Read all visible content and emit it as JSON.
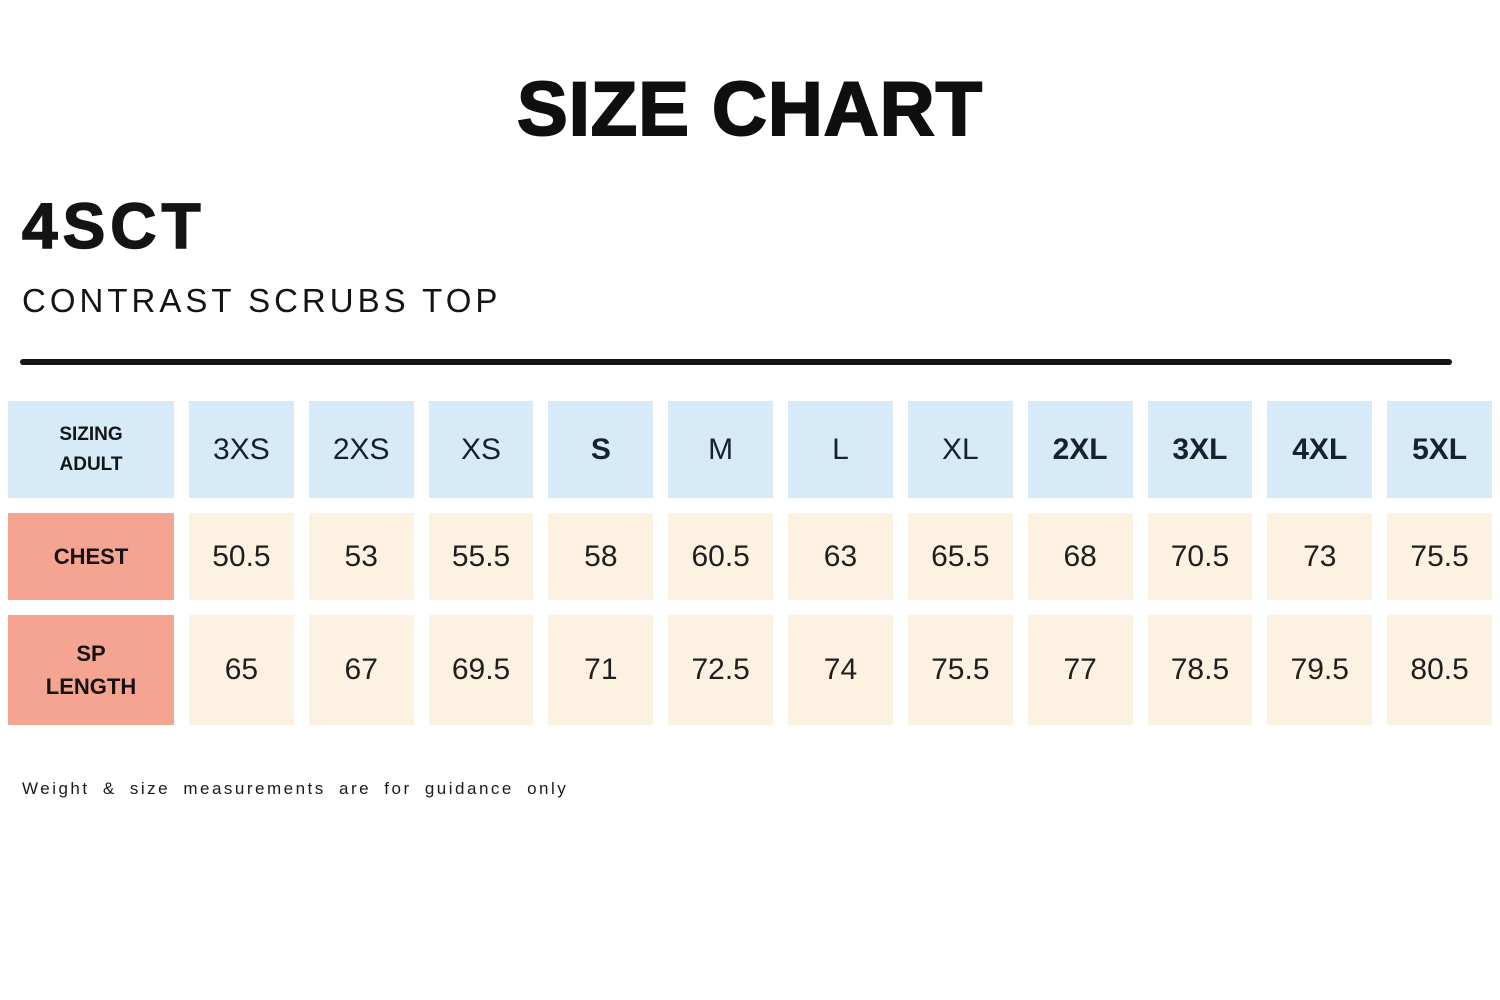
{
  "page": {
    "title": "SIZE CHART",
    "product_code": "4SCT",
    "product_name": "CONTRAST SCRUBS TOP",
    "footnote": "Weight & size measurements are for guidance only"
  },
  "colors": {
    "header_cell_bg": "#d6eaf8",
    "row_label_bg": "#f6a492",
    "value_cell_bg": "#fdf1e2",
    "text_dark": "#18222e"
  },
  "chart_data": {
    "type": "table",
    "title": "SIZE CHART",
    "corner_label": "SIZING ADULT",
    "sizes": [
      "3XS",
      "2XS",
      "XS",
      "S",
      "M",
      "L",
      "XL",
      "2XL",
      "3XL",
      "4XL",
      "5XL"
    ],
    "bold_sizes": [
      "S",
      "2XL",
      "3XL",
      "4XL",
      "5XL"
    ],
    "rows": [
      {
        "label": "CHEST",
        "values": [
          "50.5",
          "53",
          "55.5",
          "58",
          "60.5",
          "63",
          "65.5",
          "68",
          "70.5",
          "73",
          "75.5"
        ]
      },
      {
        "label": "SP LENGTH",
        "values": [
          "65",
          "67",
          "69.5",
          "71",
          "72.5",
          "74",
          "75.5",
          "77",
          "78.5",
          "79.5",
          "80.5"
        ]
      }
    ]
  }
}
